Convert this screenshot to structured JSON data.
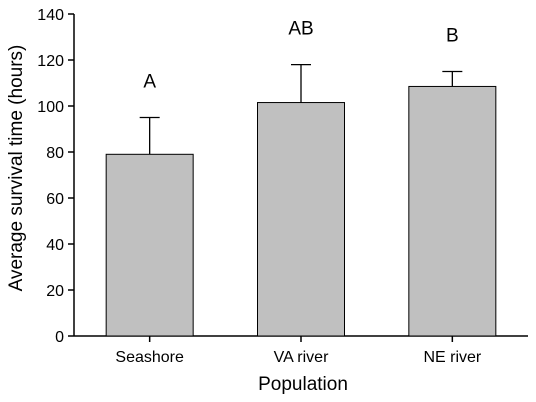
{
  "chart_data": {
    "type": "bar",
    "categories": [
      "Seashore",
      "VA river",
      "NE river"
    ],
    "values": [
      79,
      101.5,
      108.5
    ],
    "errors_upper": [
      95,
      118,
      115
    ],
    "significance_labels": [
      "A",
      "AB",
      "B"
    ],
    "xlabel": "Population",
    "ylabel": "Average survival time (hours)",
    "ylim": [
      0,
      140
    ],
    "yticks": [
      0,
      20,
      40,
      60,
      80,
      100,
      120,
      140
    ],
    "grid": false,
    "bar_color": "#c0c0c0"
  }
}
